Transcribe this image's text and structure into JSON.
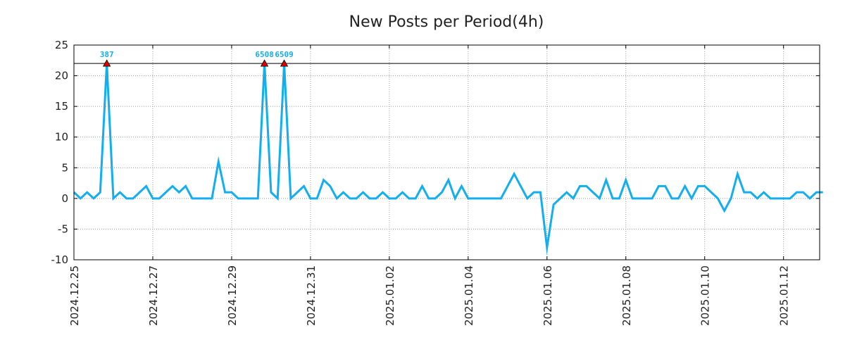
{
  "chart_data": {
    "type": "line",
    "title": "New Posts per Period(4h)",
    "xlabel": "",
    "ylabel": "",
    "ylim": [
      -10,
      25
    ],
    "yticks": [
      25,
      20,
      15,
      10,
      5,
      0,
      -5,
      -10
    ],
    "y_tick_labels": [
      "25",
      "20",
      "15",
      "10",
      "5",
      "0",
      "-5",
      "-10"
    ],
    "grid": true,
    "clip_value": 22,
    "x_tick_labels": [
      "2024.12.25",
      "2024.12.27",
      "2024.12.29",
      "2024.12.31",
      "2025.01.02",
      "2025.01.04",
      "2025.01.06",
      "2025.01.08",
      "2025.01.10",
      "2025.01.12"
    ],
    "x_tick_periods": [
      0,
      12,
      24,
      36,
      48,
      60,
      72,
      84,
      96,
      108
    ],
    "x_range_periods": [
      0,
      113.5
    ],
    "series": [
      {
        "name": "New Posts",
        "color": "#13aef0",
        "values": [
          1,
          0,
          1,
          0,
          1,
          22,
          0,
          1,
          0,
          0,
          1,
          2,
          0,
          0,
          1,
          2,
          1,
          2,
          0,
          0,
          0,
          0,
          6,
          1,
          1,
          0,
          0,
          0,
          0,
          22,
          1,
          0,
          22,
          0,
          1,
          2,
          0,
          0,
          3,
          2,
          0,
          1,
          0,
          0,
          1,
          0,
          0,
          1,
          0,
          0,
          1,
          0,
          0,
          2,
          0,
          0,
          1,
          3,
          0,
          2,
          0,
          0,
          0,
          0,
          0,
          0,
          2,
          4,
          2,
          0,
          1,
          1,
          -8,
          -1,
          0,
          1,
          0,
          2,
          2,
          1,
          0,
          3,
          0,
          0,
          3,
          0,
          0,
          0,
          0,
          2,
          2,
          0,
          0,
          2,
          0,
          2,
          2,
          1,
          0,
          -2,
          0,
          4,
          1,
          1,
          0,
          1,
          0,
          0,
          0,
          0,
          1,
          1,
          0,
          1,
          1
        ]
      }
    ],
    "clipped_points": [
      {
        "index": 5,
        "label": "387"
      },
      {
        "index": 29,
        "label": "6508"
      },
      {
        "index": 32,
        "label": "6509"
      }
    ],
    "marker_color": "#dd0000",
    "label_color": "#13aef0"
  }
}
